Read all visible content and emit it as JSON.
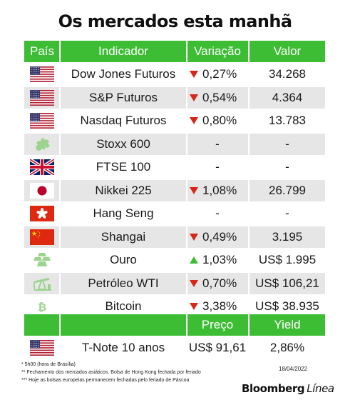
{
  "title": "Os mercados esta manhã",
  "headers": {
    "country": "País",
    "indicator": "Indicador",
    "change": "Variação",
    "value": "Valor"
  },
  "rows": [
    {
      "flag": "us-flag-icon",
      "indicator": "Dow Jones Futuros",
      "direction": "down",
      "change": "0,27%",
      "value": "34.268"
    },
    {
      "flag": "us-flag-icon",
      "indicator": "S&P Futuros",
      "direction": "down",
      "change": "0,54%",
      "value": "4.364"
    },
    {
      "flag": "us-flag-icon",
      "indicator": "Nasdaq Futuros",
      "direction": "down",
      "change": "0,80%",
      "value": "13.783"
    },
    {
      "flag": "europe-map-icon",
      "indicator": "Stoxx 600",
      "direction": "none",
      "change": "-",
      "value": "-"
    },
    {
      "flag": "uk-flag-icon",
      "indicator": "FTSE 100",
      "direction": "none",
      "change": "-",
      "value": "-"
    },
    {
      "flag": "japan-flag-icon",
      "indicator": "Nikkei 225",
      "direction": "down",
      "change": "1,08%",
      "value": "26.799"
    },
    {
      "flag": "hong-kong-flag-icon",
      "indicator": "Hang Seng",
      "direction": "none",
      "change": "-",
      "value": "-"
    },
    {
      "flag": "china-flag-icon",
      "indicator": "Shangai",
      "direction": "down",
      "change": "0,49%",
      "value": "3.195"
    },
    {
      "flag": "gold-bars-icon",
      "indicator": "Ouro",
      "direction": "up",
      "change": "1,03%",
      "value": "US$ 1.995"
    },
    {
      "flag": "oil-pump-icon",
      "indicator": "Petróleo WTI",
      "direction": "down",
      "change": "0,70%",
      "value": "US$ 106,21"
    },
    {
      "flag": "bitcoin-icon",
      "indicator": "Bitcoin",
      "direction": "down",
      "change": "3,38%",
      "value": "US$ 38.935"
    }
  ],
  "bond": {
    "headers": {
      "price": "Preço",
      "yield": "Yield"
    },
    "flag": "us-flag-icon",
    "name": "T-Note 10 anos",
    "price": "US$ 91,61",
    "yield": "2,86%"
  },
  "footnotes": [
    "* 5h00 (hora de Brasília)",
    "** Fechamento dos mercados asiáticos. Bolsa de Hong Kong fechada por feriado",
    "*** Hoje as bolsas europeias permanecem fechadas pelo feriado de Páscoa"
  ],
  "date": "18/04/2022",
  "brand": {
    "name": "Bloomberg",
    "suffix": "Línea"
  },
  "colors": {
    "accent_green": "#3dbd34",
    "down_red": "#d62718",
    "row_shade": "#e6e6e6"
  }
}
